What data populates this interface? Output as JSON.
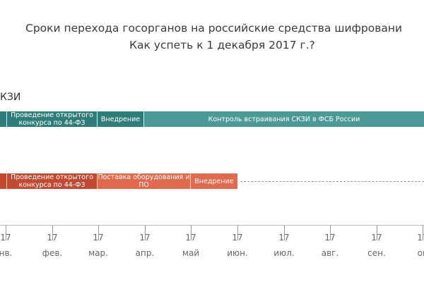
{
  "title": {
    "line1": "Сроки перехода госорганов на российские средства шифровани",
    "line2": "Как успеть к 1 декабря 2017 г.?"
  },
  "section_label": "КЗИ",
  "teal_row": {
    "segments": [
      {
        "label": ""
      },
      {
        "label": "Проведение открытого конкурса по 44-ФЗ"
      },
      {
        "label": "Внедрение"
      },
      {
        "label": "Контроль встраивания СКЗИ в ФСБ России"
      }
    ]
  },
  "red_row": {
    "segments": [
      {
        "label": ""
      },
      {
        "label": "Проведение открытого конкурса по 44-ФЗ"
      },
      {
        "label": "Поставка оборудования и ПО"
      },
      {
        "label": "Внедрение"
      }
    ]
  },
  "timeline": [
    {
      "num": "17",
      "month": "нв."
    },
    {
      "num": "17",
      "month": "фев."
    },
    {
      "num": "17",
      "month": "мар."
    },
    {
      "num": "17",
      "month": "апр."
    },
    {
      "num": "17",
      "month": "май"
    },
    {
      "num": "17",
      "month": "июн."
    },
    {
      "num": "17",
      "month": "июл."
    },
    {
      "num": "17",
      "month": "авг."
    },
    {
      "num": "17",
      "month": "сен."
    },
    {
      "num": "17",
      "month": "ок"
    }
  ],
  "colors": {
    "teal": "#4c9a98",
    "teal_dark": "#2f7d7b",
    "red": "#e06a4e",
    "red_dark": "#c24a33"
  }
}
